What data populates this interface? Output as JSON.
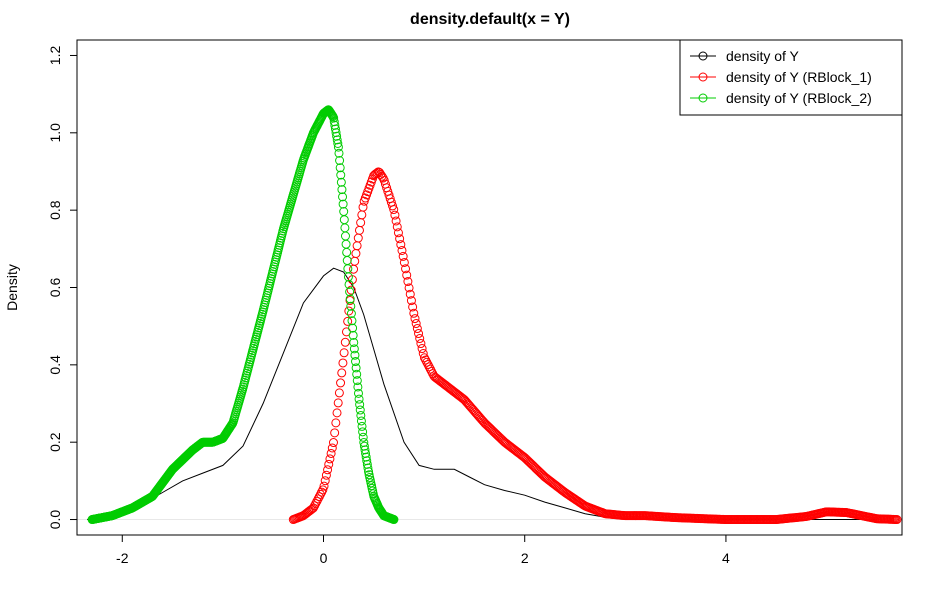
{
  "chart_data": {
    "type": "line",
    "title": "density.default(x = Y)",
    "xlabel": "",
    "ylabel": "Density",
    "xlim": [
      -2.45,
      5.75
    ],
    "ylim": [
      -0.04,
      1.24
    ],
    "xticks": [
      "-2",
      "0",
      "2",
      "4"
    ],
    "xtick_values": [
      -2,
      0,
      2,
      4
    ],
    "yticks": [
      "0.0",
      "0.2",
      "0.4",
      "0.6",
      "0.8",
      "1.0",
      "1.2"
    ],
    "ytick_values": [
      0.0,
      0.2,
      0.4,
      0.6,
      0.8,
      1.0,
      1.2
    ],
    "grid": false,
    "legend_position": "top-right",
    "series": [
      {
        "name": "density of Y",
        "color": "#000000",
        "style": "line",
        "x": [
          -2.35,
          -2.2,
          -2.0,
          -1.8,
          -1.6,
          -1.4,
          -1.2,
          -1.0,
          -0.8,
          -0.6,
          -0.4,
          -0.2,
          0.0,
          0.1,
          0.2,
          0.3,
          0.4,
          0.5,
          0.6,
          0.8,
          0.95,
          1.1,
          1.3,
          1.45,
          1.6,
          1.8,
          2.0,
          2.2,
          2.4,
          2.6,
          2.8,
          3.0,
          3.5,
          4.0,
          4.5,
          5.0,
          5.5
        ],
        "y": [
          0.0,
          0.004,
          0.015,
          0.04,
          0.07,
          0.1,
          0.12,
          0.14,
          0.19,
          0.3,
          0.43,
          0.56,
          0.63,
          0.65,
          0.64,
          0.6,
          0.53,
          0.44,
          0.35,
          0.2,
          0.14,
          0.13,
          0.13,
          0.11,
          0.09,
          0.075,
          0.063,
          0.045,
          0.03,
          0.015,
          0.006,
          0.002,
          0.0,
          0.0,
          0.0,
          0.0,
          0.0
        ]
      },
      {
        "name": "density of Y (RBlock_1)",
        "color": "#ff0000",
        "style": "points",
        "x": [
          -0.3,
          -0.2,
          -0.1,
          0.0,
          0.1,
          0.2,
          0.3,
          0.4,
          0.5,
          0.55,
          0.6,
          0.7,
          0.8,
          0.9,
          1.0,
          1.1,
          1.2,
          1.4,
          1.6,
          1.8,
          2.0,
          2.2,
          2.4,
          2.6,
          2.8,
          3.0,
          3.2,
          3.5,
          4.0,
          4.5,
          4.8,
          5.0,
          5.2,
          5.5,
          5.7
        ],
        "y": [
          0.0,
          0.01,
          0.03,
          0.08,
          0.2,
          0.42,
          0.65,
          0.82,
          0.89,
          0.9,
          0.88,
          0.8,
          0.67,
          0.53,
          0.42,
          0.37,
          0.35,
          0.31,
          0.25,
          0.2,
          0.16,
          0.11,
          0.07,
          0.035,
          0.015,
          0.01,
          0.01,
          0.005,
          0.0,
          0.0,
          0.008,
          0.02,
          0.018,
          0.002,
          0.0
        ]
      },
      {
        "name": "density of Y (RBlock_2)",
        "color": "#00cc00",
        "style": "points",
        "x": [
          -2.3,
          -2.1,
          -1.9,
          -1.7,
          -1.5,
          -1.3,
          -1.2,
          -1.1,
          -1.0,
          -0.9,
          -0.8,
          -0.6,
          -0.4,
          -0.2,
          -0.1,
          0.0,
          0.05,
          0.1,
          0.15,
          0.2,
          0.25,
          0.3,
          0.35,
          0.4,
          0.45,
          0.5,
          0.55,
          0.6,
          0.7
        ],
        "y": [
          0.0,
          0.01,
          0.03,
          0.06,
          0.13,
          0.18,
          0.2,
          0.2,
          0.21,
          0.25,
          0.34,
          0.54,
          0.75,
          0.93,
          1.0,
          1.05,
          1.06,
          1.04,
          0.96,
          0.8,
          0.62,
          0.46,
          0.32,
          0.2,
          0.12,
          0.06,
          0.03,
          0.01,
          0.0
        ]
      }
    ]
  }
}
